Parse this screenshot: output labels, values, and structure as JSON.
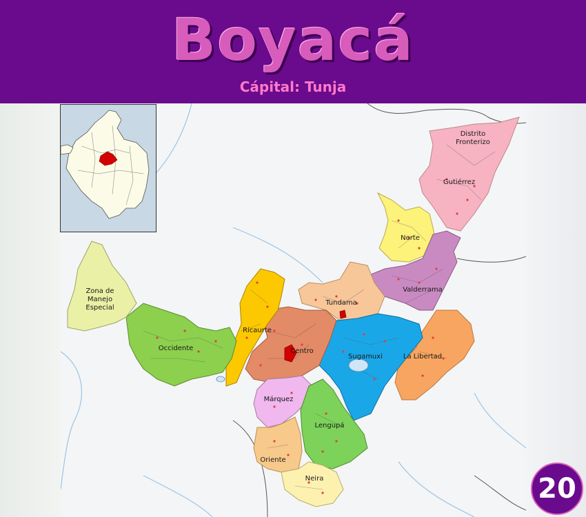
{
  "header": {
    "title": "Boyacá",
    "subtitle": "Cápital: Tunja"
  },
  "map": {
    "provinces": [
      {
        "name": "Distrito Fronterizo",
        "color": "#f7b3c2"
      },
      {
        "name": "Gutiérrez",
        "color": "#f7b3c2"
      },
      {
        "name": "Norte",
        "color": "#fdf27a"
      },
      {
        "name": "Valderrama",
        "color": "#c98ac2"
      },
      {
        "name": "Tundama",
        "color": "#f7c79a"
      },
      {
        "name": "Zona de Manejo Especial",
        "color": "#eaf0a5"
      },
      {
        "name": "Ricaurte",
        "color": "#fcc800"
      },
      {
        "name": "Occidente",
        "color": "#8cd04e"
      },
      {
        "name": "Centro",
        "color": "#e38a66"
      },
      {
        "name": "Sugamuxi",
        "color": "#1aa7e8"
      },
      {
        "name": "La Libertad",
        "color": "#f7a560"
      },
      {
        "name": "Márquez",
        "color": "#f0b8ee"
      },
      {
        "name": "Lengupá",
        "color": "#7dd25a"
      },
      {
        "name": "Oriente",
        "color": "#f7c98a"
      },
      {
        "name": "Neira",
        "color": "#fdf1b0"
      }
    ],
    "highlight_color": "#d50000"
  },
  "badge": {
    "number": "20"
  }
}
